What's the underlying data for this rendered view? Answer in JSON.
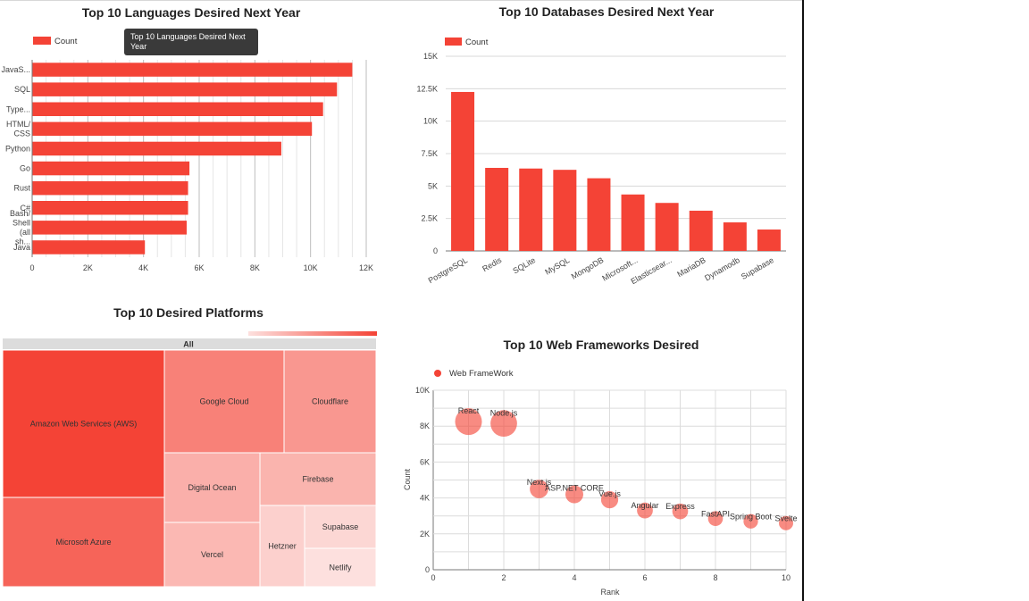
{
  "chart_data": [
    {
      "type": "bar",
      "orientation": "horizontal",
      "title": "Top 10 Languages Desired Next Year",
      "categories": [
        "JavaS...",
        "SQL",
        "Type...",
        "HTML/ CSS",
        "Python",
        "Go",
        "Rust",
        "C#",
        "Bash/ Shell (all sh...",
        "Java"
      ],
      "series": [
        {
          "name": "Count",
          "values": [
            11500,
            10950,
            10450,
            10050,
            8950,
            5650,
            5600,
            5600,
            5550,
            4050
          ]
        }
      ],
      "xlim": [
        0,
        12000
      ],
      "xticks": [
        "0",
        "2K",
        "4K",
        "6K",
        "8K",
        "10K",
        "12K"
      ],
      "legend": "top-left",
      "tooltip": "Top 10 Languages Desired Next Year",
      "color": "#f44336"
    },
    {
      "type": "bar",
      "title": "Top 10 Databases Desired Next Year",
      "categories": [
        "PostgreSQL",
        "Redis",
        "SQLite",
        "MySQL",
        "MongoDB",
        "Microsoft...",
        "Elasticsear...",
        "MariaDB",
        "Dynamodb",
        "Supabase"
      ],
      "series": [
        {
          "name": "Count",
          "values": [
            12250,
            6400,
            6350,
            6250,
            5600,
            4350,
            3700,
            3100,
            2200,
            1650
          ]
        }
      ],
      "ylim": [
        0,
        15000
      ],
      "yticks": [
        "0",
        "2.5K",
        "5K",
        "7.5K",
        "10K",
        "12.5K",
        "15K"
      ],
      "legend": "top-left",
      "color": "#f44336"
    },
    {
      "type": "treemap",
      "title": "Top 10 Desired Platforms",
      "root": "All",
      "items": [
        {
          "name": "Amazon Web Services (AWS)",
          "value": 100
        },
        {
          "name": "Microsoft Azure",
          "value": 77
        },
        {
          "name": "Google Cloud",
          "value": 58
        },
        {
          "name": "Cloudflare",
          "value": 45
        },
        {
          "name": "Digital Ocean",
          "value": 32
        },
        {
          "name": "Firebase",
          "value": 30
        },
        {
          "name": "Vercel",
          "value": 28
        },
        {
          "name": "Hetzner",
          "value": 18
        },
        {
          "name": "Supabase",
          "value": 16
        },
        {
          "name": "Netlify",
          "value": 14
        }
      ]
    },
    {
      "type": "scatter",
      "title": "Top 10 Web Frameworks Desired",
      "series": [
        {
          "name": "Web FrameWork",
          "points": [
            {
              "x": 1,
              "y": 8250,
              "label": "React"
            },
            {
              "x": 2,
              "y": 8150,
              "label": "Node.js"
            },
            {
              "x": 3,
              "y": 4500,
              "label": "Next.js"
            },
            {
              "x": 4,
              "y": 4200,
              "label": "ASP.NET CORE"
            },
            {
              "x": 5,
              "y": 3900,
              "label": "Vue.js"
            },
            {
              "x": 6,
              "y": 3300,
              "label": "Angular"
            },
            {
              "x": 7,
              "y": 3250,
              "label": "Express"
            },
            {
              "x": 8,
              "y": 2850,
              "label": "FastAPI"
            },
            {
              "x": 9,
              "y": 2700,
              "label": "Spring Boot"
            },
            {
              "x": 10,
              "y": 2600,
              "label": "Svelte"
            }
          ]
        }
      ],
      "xlim": [
        0,
        10
      ],
      "ylim": [
        0,
        10000
      ],
      "xticks": [
        "0",
        "2",
        "4",
        "6",
        "8",
        "10"
      ],
      "yticks": [
        "0",
        "2K",
        "4K",
        "6K",
        "8K",
        "10K"
      ],
      "xlabel": "Rank",
      "ylabel": "Count",
      "legend": "top-left",
      "color": "#f44336"
    }
  ]
}
